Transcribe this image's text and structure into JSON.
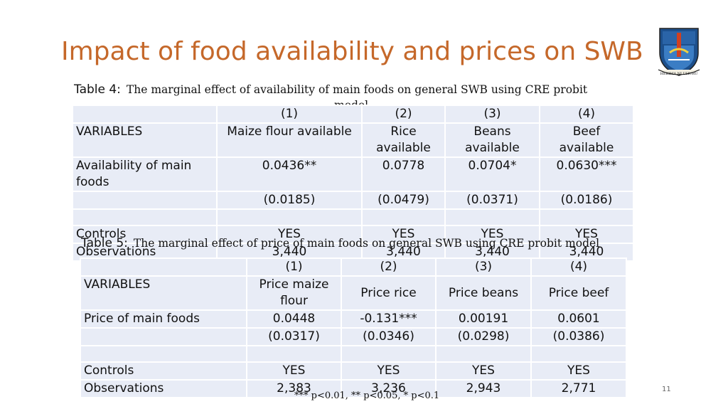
{
  "title": "Impact of food availability and prices on SWB",
  "page_number": "11",
  "logo_text": "HEKIMA NI UHURU",
  "table4": {
    "label": "Table 4:",
    "caption": "The marginal effect of availability of main foods on general SWB using CRE probit",
    "caption_wrap": "model",
    "colnums": [
      "",
      "(1)",
      "(2)",
      "(3)",
      "(4)"
    ],
    "header": [
      "VARIABLES",
      "Maize flour available",
      "Rice available",
      "Beans available",
      "Beef available"
    ],
    "row_coef": [
      "Availability of main foods",
      "0.0436**",
      "0.0778",
      "0.0704*",
      "0.0630***"
    ],
    "row_se": [
      "",
      "(0.0185)",
      "(0.0479)",
      "(0.0371)",
      "(0.0186)"
    ],
    "row_controls": [
      "Controls",
      "YES",
      "YES",
      "YES",
      "YES"
    ],
    "row_obs": [
      "Observations",
      "3,440",
      "3,440",
      "3,440",
      "3,440"
    ]
  },
  "table5": {
    "label": "Table 5:",
    "caption": "The marginal effect of price of main foods on general SWB using CRE probit model",
    "colnums": [
      "",
      "(1)",
      "(2)",
      "(3)",
      "(4)"
    ],
    "header": [
      "VARIABLES",
      "Price maize flour",
      "Price rice",
      "Price beans",
      "Price beef"
    ],
    "row_coef": [
      "Price of main foods",
      "0.0448",
      "-0.131***",
      "0.00191",
      "0.0601"
    ],
    "row_se": [
      "",
      "(0.0317)",
      "(0.0346)",
      "(0.0298)",
      "(0.0386)"
    ],
    "row_controls": [
      "Controls",
      "YES",
      "YES",
      "YES",
      "YES"
    ],
    "row_obs": [
      "Observations",
      "2,383",
      "3,236",
      "2,943",
      "2,771"
    ]
  },
  "footnote": "*** p<0.01, ** p<0.05, * p<0.1"
}
